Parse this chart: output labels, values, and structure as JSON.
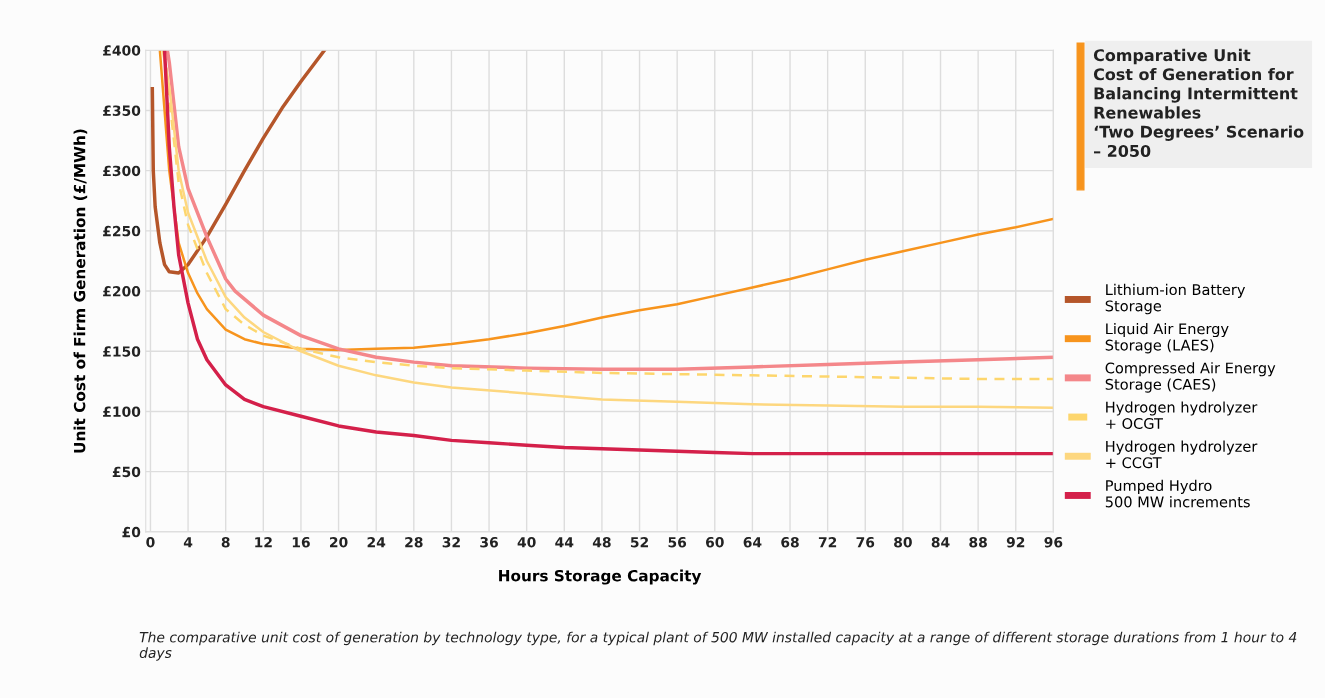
{
  "chart_data": {
    "type": "line",
    "title": "Comparative Unit\nCost of Generation for\nBalancing Intermittent\nRenewables\n‘Two Degrees’ Scenario\n– 2050",
    "xlabel": "Hours Storage Capacity",
    "ylabel": "Unit Cost of Firm Generation (£/MWh)",
    "xlim": [
      -0.5,
      96
    ],
    "xticks": [
      0,
      4,
      8,
      12,
      16,
      20,
      24,
      28,
      32,
      36,
      40,
      44,
      48,
      52,
      56,
      60,
      64,
      68,
      72,
      76,
      80,
      84,
      88,
      92,
      96
    ],
    "ylim": [
      0,
      400
    ],
    "yticks": [
      {
        "value": 0,
        "label": "£0"
      },
      {
        "value": 50,
        "label": "£50"
      },
      {
        "value": 100,
        "label": "£100"
      },
      {
        "value": 150,
        "label": "£150"
      },
      {
        "value": 200,
        "label": "£200"
      },
      {
        "value": 250,
        "label": "£250"
      },
      {
        "value": 300,
        "label": "£300"
      },
      {
        "value": 350,
        "label": "£350"
      },
      {
        "value": 400,
        "label": "£400"
      }
    ],
    "grid": true,
    "legend": "right",
    "marker": "none",
    "annotations": [
      "The comparative unit cost of generation by technology type, for a typical plant of 500 MW installed capacity at a range of different storage durations from 1 hour to 4 days"
    ],
    "series": [
      {
        "name": "Lithium-ion Battery\nStorage",
        "color": "#b5562a",
        "line_style": "solid",
        "x": [
          0.2,
          0.3,
          0.5,
          1,
          1.5,
          2,
          3,
          4,
          6,
          8,
          10,
          12,
          14,
          16,
          18.5
        ],
        "values": [
          368,
          300,
          270,
          240,
          222,
          216,
          215,
          222,
          245,
          272,
          300,
          327,
          352,
          374,
          400
        ]
      },
      {
        "name": "Liquid Air Energy\nStorage (LAES)",
        "color": "#f7941d",
        "line_style": "solid",
        "x": [
          1,
          2,
          3,
          4,
          5,
          6,
          8,
          10,
          12,
          16,
          20,
          24,
          28,
          32,
          36,
          40,
          44,
          48,
          52,
          56,
          60,
          64,
          68,
          72,
          76,
          80,
          84,
          88,
          92,
          96
        ],
        "values": [
          400,
          300,
          240,
          215,
          198,
          185,
          168,
          160,
          156,
          152,
          151,
          152,
          153,
          156,
          160,
          165,
          171,
          178,
          184,
          189,
          196,
          203,
          210,
          218,
          226,
          233,
          240,
          247,
          253,
          260
        ]
      },
      {
        "name": "Compressed Air Energy\nStorage (CAES)",
        "color": "#f4878a",
        "line_style": "solid",
        "x": [
          1.8,
          2,
          3,
          4,
          6,
          8,
          9,
          12,
          16,
          20,
          24,
          28,
          32,
          40,
          48,
          56,
          64,
          72,
          80,
          88,
          96
        ],
        "values": [
          400,
          390,
          320,
          285,
          245,
          210,
          200,
          180,
          163,
          152,
          145,
          141,
          138,
          136,
          135,
          135,
          137,
          139,
          141,
          143,
          145
        ]
      },
      {
        "name": "Hydrogen hydrolyzer\n+ OCGT",
        "color": "#fdd66d",
        "line_style": "dashed",
        "x": [
          1.5,
          2,
          3,
          4,
          6,
          8,
          10,
          12,
          16,
          20,
          24,
          28,
          32,
          40,
          48,
          56,
          64,
          72,
          80,
          88,
          96
        ],
        "values": [
          400,
          360,
          290,
          255,
          215,
          185,
          172,
          163,
          152,
          145,
          141,
          138,
          136,
          134,
          132,
          131,
          130,
          129,
          128,
          127,
          127
        ]
      },
      {
        "name": "Hydrogen hydrolyzer\n+ CCGT",
        "color": "#fdd77f",
        "line_style": "solid",
        "x": [
          1.3,
          2,
          3,
          4,
          6,
          8,
          10,
          12,
          16,
          20,
          24,
          28,
          32,
          40,
          48,
          56,
          64,
          72,
          80,
          88,
          96
        ],
        "values": [
          400,
          370,
          300,
          265,
          225,
          195,
          178,
          166,
          150,
          138,
          130,
          124,
          120,
          115,
          110,
          108,
          106,
          105,
          104,
          104,
          103
        ]
      },
      {
        "name": "Pumped Hydro\n500 MW increments",
        "color": "#d4204a",
        "line_style": "solid",
        "x": [
          1.5,
          2,
          2.5,
          3,
          4,
          5,
          6,
          8,
          10,
          12,
          16,
          20,
          24,
          28,
          32,
          36,
          40,
          44,
          48,
          52,
          56,
          60,
          64,
          72,
          80,
          88,
          96
        ],
        "values": [
          400,
          320,
          270,
          230,
          190,
          160,
          143,
          122,
          110,
          104,
          96,
          88,
          83,
          80,
          76,
          74,
          72,
          70,
          69,
          68,
          67,
          66,
          65,
          65,
          65,
          65,
          65
        ]
      }
    ]
  }
}
